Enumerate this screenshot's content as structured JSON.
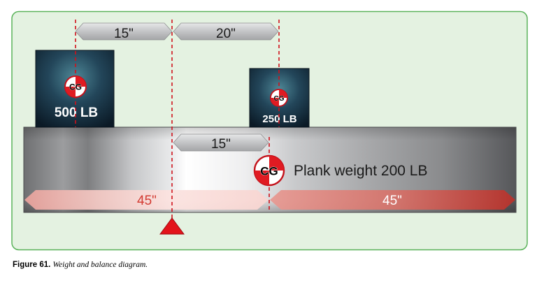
{
  "figure": {
    "number_label": "Figure 61.",
    "caption": "Weight and balance diagram."
  },
  "dimensions": {
    "top_left": "15\"",
    "top_right": "20\"",
    "plank_cg_offset": "15\"",
    "left_half": "45\"",
    "right_half": "45\""
  },
  "weights": {
    "left_box": {
      "label": "500 LB",
      "cg_label": "CG"
    },
    "right_box": {
      "label": "250 LB",
      "cg_label": "CG"
    },
    "plank": {
      "label": "Plank weight 200 LB",
      "cg_label": "CG"
    }
  },
  "colors": {
    "panel_border": "#5bb35b",
    "panel_fill": "#e4f2e1",
    "datum_line": "#d0121b",
    "fulcrum": "#e3141b",
    "left_half_arrow_text": "#d33b32"
  }
}
